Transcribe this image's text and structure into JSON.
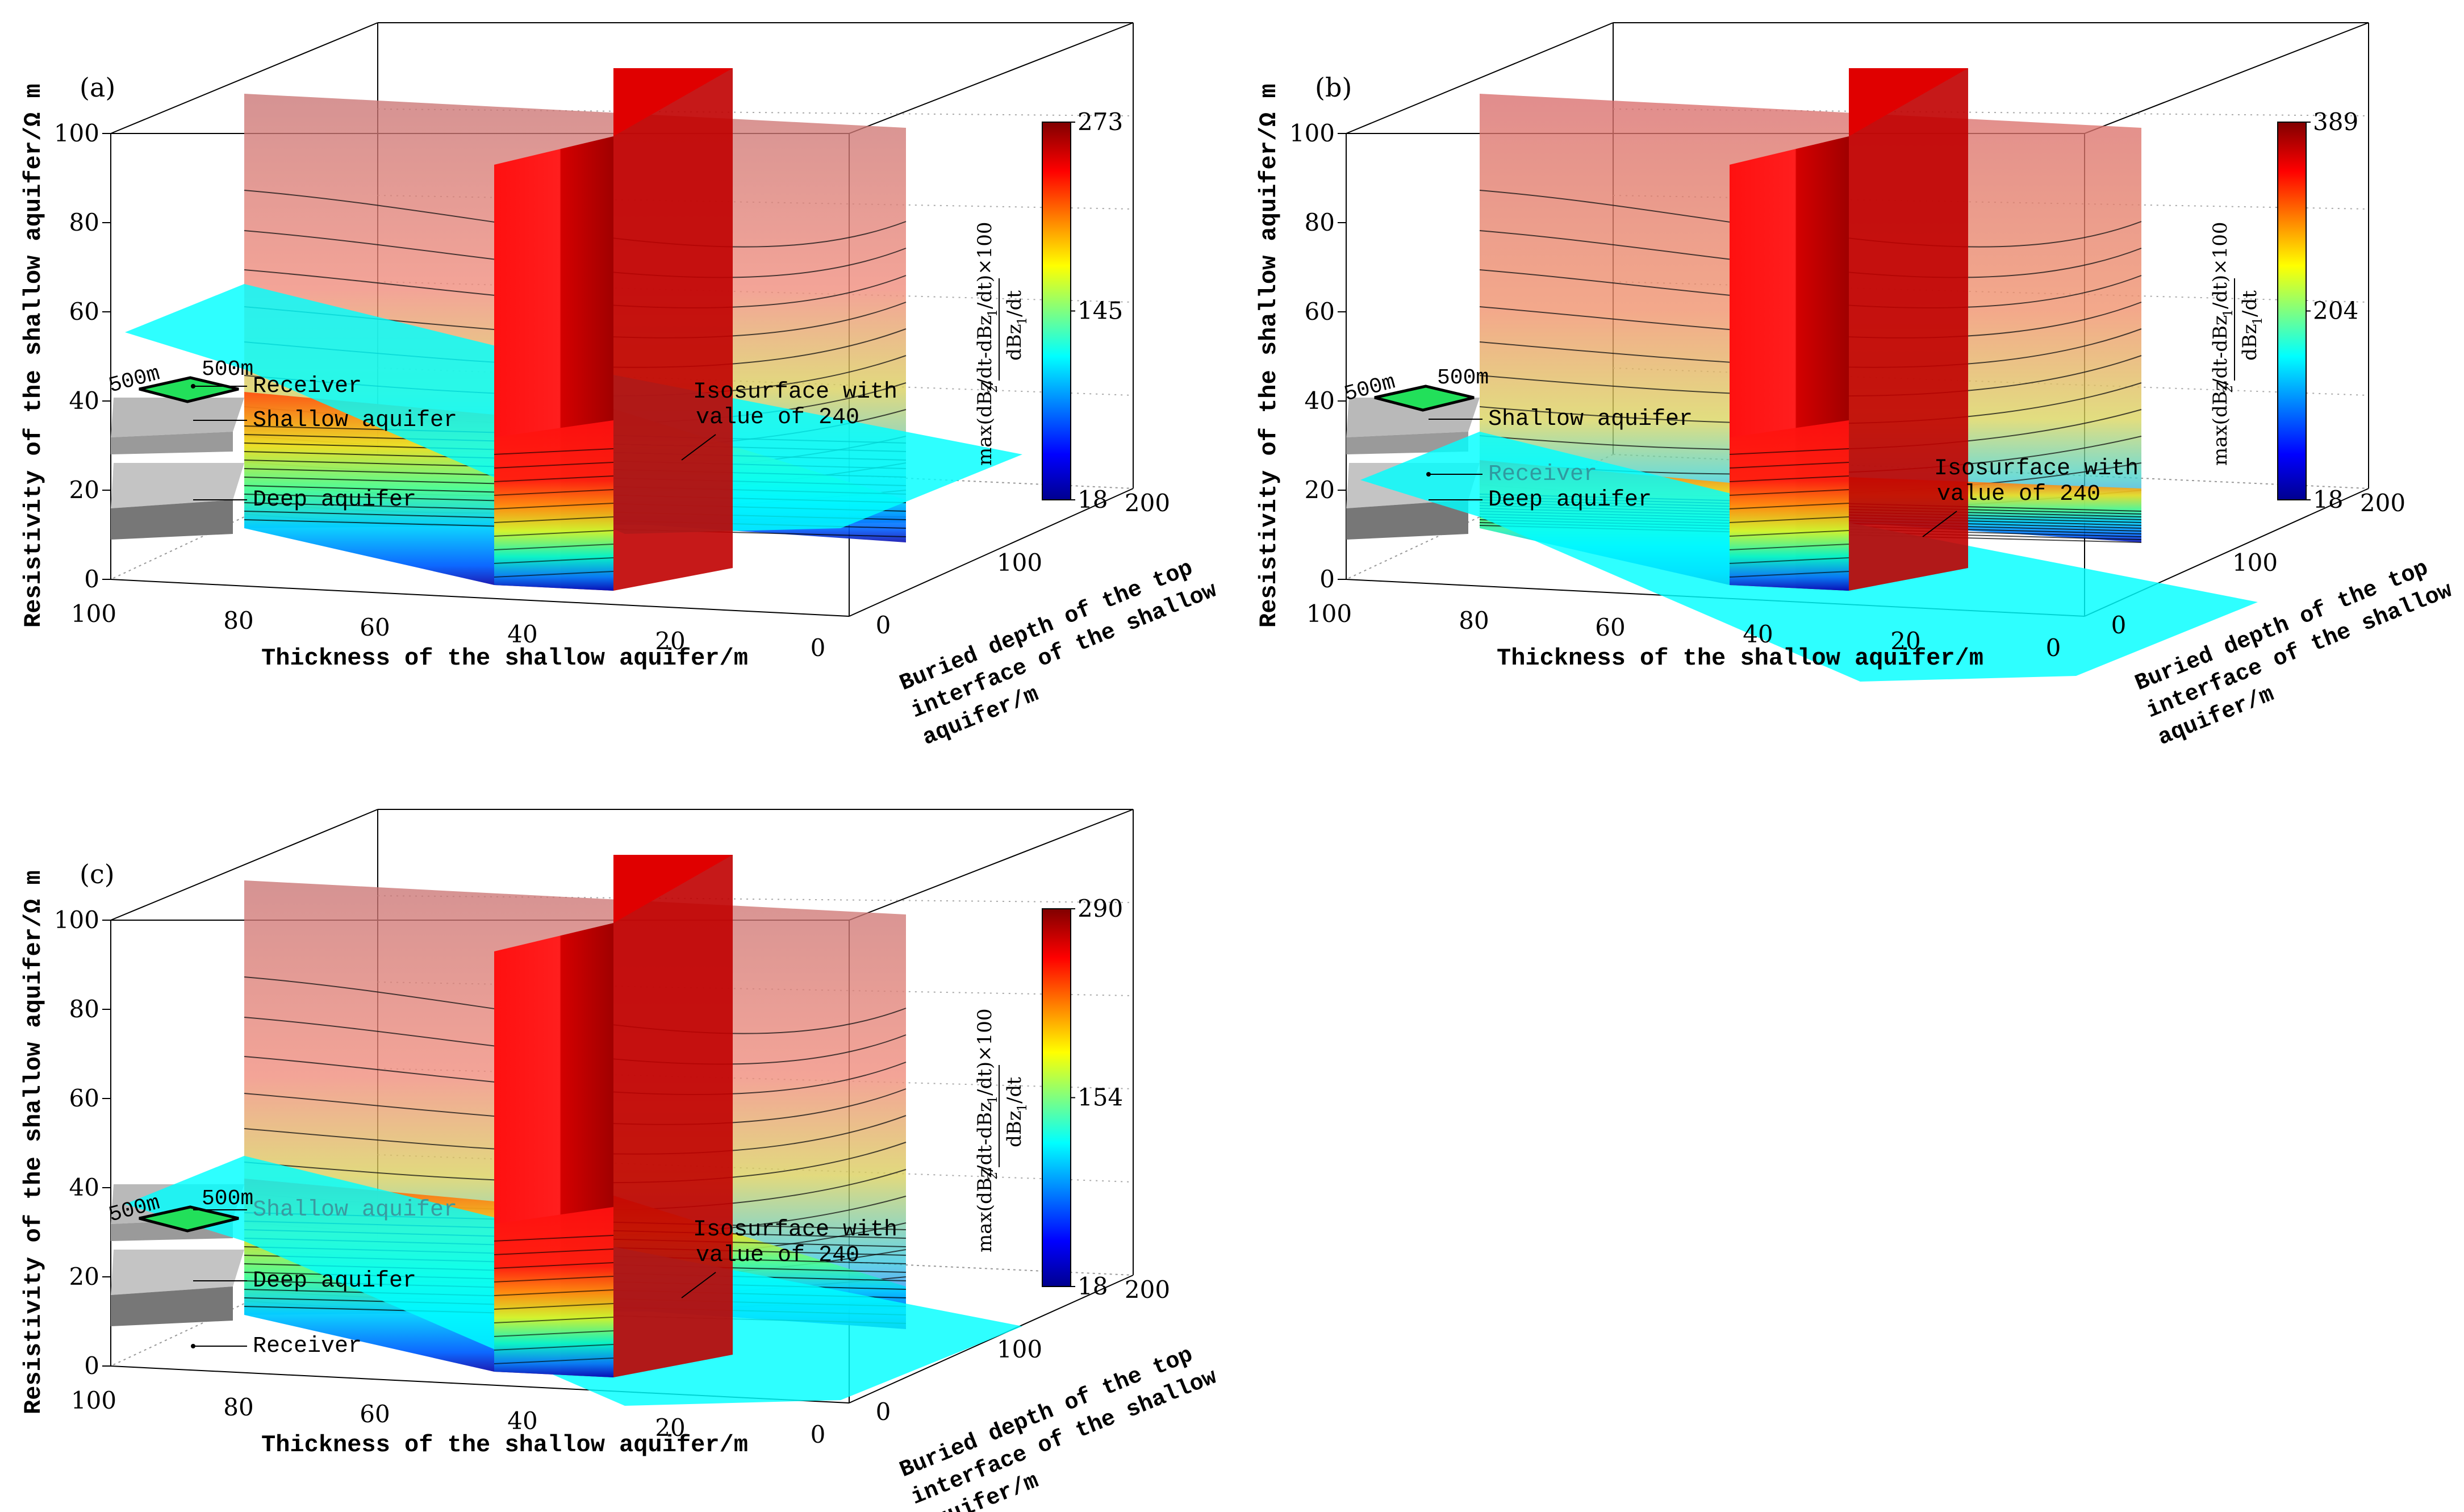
{
  "chart_data": [
    {
      "type": "volume-slice",
      "panel_label": "(a)",
      "xlabel": "Thickness of the shallow aquifer/m",
      "ylabel": "Resistivity of the shallow aquifer/Ω m",
      "zlabel": [
        "Buried depth of the top",
        "interface of the shallow",
        "aquifer/m"
      ],
      "x_ticks": [
        "100",
        "80",
        "60",
        "40",
        "20",
        "0"
      ],
      "y_ticks": [
        "0",
        "20",
        "40",
        "60",
        "80",
        "100"
      ],
      "z_ticks": [
        "0",
        "100",
        "200"
      ],
      "xlim": [
        0,
        100
      ],
      "ylim": [
        0,
        100
      ],
      "zlim": [
        0,
        200
      ],
      "colorbar": {
        "min": 18,
        "mid": 145,
        "max": 273,
        "tick_labels": [
          "18",
          "145",
          "273"
        ],
        "label": "max(dBz2/dt-dBz1/dt)×100 / dBz1/dt"
      },
      "annotations": [
        {
          "text": "Isosurface with",
          "text2": "value of 240"
        },
        {
          "text": "Receiver"
        },
        {
          "text": "Shallow aquifer"
        },
        {
          "text": "Deep aquifer"
        },
        {
          "text": "500m"
        },
        {
          "text": "500m"
        }
      ],
      "isosurface_value": 240
    },
    {
      "type": "volume-slice",
      "panel_label": "(b)",
      "xlabel": "Thickness of the shallow aquifer/m",
      "ylabel": "Resistivity of the shallow aquifer/Ω m",
      "zlabel": [
        "Buried depth of the top",
        "interface of the shallow",
        "aquifer/m"
      ],
      "x_ticks": [
        "100",
        "80",
        "60",
        "40",
        "20",
        "0"
      ],
      "y_ticks": [
        "0",
        "20",
        "40",
        "60",
        "80",
        "100"
      ],
      "z_ticks": [
        "0",
        "100",
        "200"
      ],
      "xlim": [
        0,
        100
      ],
      "ylim": [
        0,
        100
      ],
      "zlim": [
        0,
        200
      ],
      "colorbar": {
        "min": 18,
        "mid": 204,
        "max": 389,
        "tick_labels": [
          "18",
          "204",
          "389"
        ],
        "label": "max(dBz2/dt-dBz1/dt)×100 / dBz1/dt"
      },
      "annotations": [
        {
          "text": "Isosurface with",
          "text2": "value of 240"
        },
        {
          "text": "Receiver"
        },
        {
          "text": "Shallow aquifer"
        },
        {
          "text": "Deep aquifer"
        },
        {
          "text": "500m"
        },
        {
          "text": "500m"
        }
      ],
      "isosurface_value": 240
    },
    {
      "type": "volume-slice",
      "panel_label": "(c)",
      "xlabel": "Thickness of the shallow aquifer/m",
      "ylabel": "Resistivity of the shallow aquifer/Ω m",
      "zlabel": [
        "Buried depth of the top",
        "interface of the shallow",
        "aquifer/m"
      ],
      "x_ticks": [
        "100",
        "80",
        "60",
        "40",
        "20",
        "0"
      ],
      "y_ticks": [
        "0",
        "20",
        "40",
        "60",
        "80",
        "100"
      ],
      "z_ticks": [
        "0",
        "100",
        "200"
      ],
      "xlim": [
        0,
        100
      ],
      "ylim": [
        0,
        100
      ],
      "zlim": [
        0,
        200
      ],
      "colorbar": {
        "min": 18,
        "mid": 154,
        "max": 290,
        "tick_labels": [
          "18",
          "154",
          "290"
        ],
        "label": "max(dBz2/dt-dBz1/dt)×100 / dBz1/dt"
      },
      "annotations": [
        {
          "text": "Isosurface with",
          "text2": "value of 240"
        },
        {
          "text": "Receiver"
        },
        {
          "text": "Shallow aquifer"
        },
        {
          "text": "Deep aquifer"
        },
        {
          "text": "500m"
        },
        {
          "text": "500m"
        }
      ],
      "isosurface_value": 240
    }
  ],
  "colors": {
    "jet": [
      "#00008f",
      "#0000ff",
      "#00ffff",
      "#ffff00",
      "#ff0000",
      "#800000"
    ],
    "cyan_isosurface": "#00ffff",
    "slice_red": "#ff1a1a",
    "gray_layer": "#b0b0b0",
    "loop_green": "#22e05a"
  }
}
